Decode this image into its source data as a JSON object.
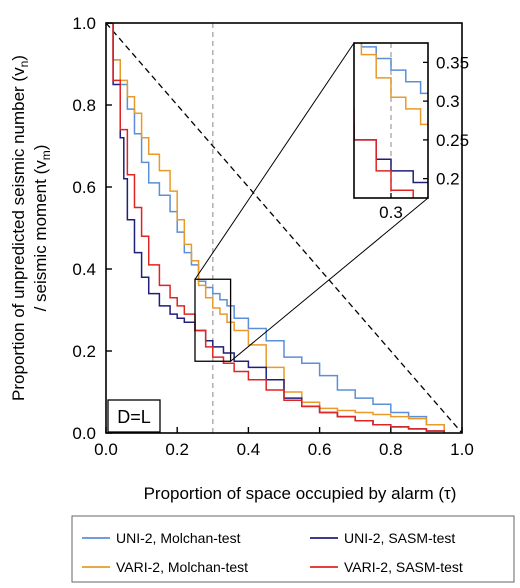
{
  "chart_data": {
    "type": "line",
    "xlabel": "Proportion of space occupied by alarm (τ)",
    "ylabel_line1": "Proportion of unpredicted seismic number (v",
    "ylabel_sub1": "n",
    "ylabel_close1": ")",
    "ylabel_line2": "/ seismic moment (v",
    "ylabel_sub2": "m",
    "ylabel_close2": ")",
    "xlim": [
      0,
      1
    ],
    "ylim": [
      0,
      1
    ],
    "xticks": [
      "0.0",
      "0.2",
      "0.4",
      "0.6",
      "0.8",
      "1.0"
    ],
    "yticks": [
      "0.0",
      "0.2",
      "0.4",
      "0.6",
      "0.8",
      "1.0"
    ],
    "region_label": "D=L",
    "reference_x": 0.3,
    "reference_diagonal": {
      "x": [
        0,
        1
      ],
      "y": [
        1,
        0
      ]
    },
    "inset": {
      "xlim": [
        0.25,
        0.35
      ],
      "ylim": [
        0.175,
        0.375
      ],
      "xtick": "0.3",
      "yticks": [
        "0.35",
        "0.3",
        "0.25",
        "0.2"
      ]
    },
    "series": [
      {
        "name": "UNI-2, Molchan-test",
        "color": "#5b8fd8",
        "x": [
          0,
          0.02,
          0.04,
          0.06,
          0.08,
          0.1,
          0.12,
          0.15,
          0.18,
          0.2,
          0.22,
          0.24,
          0.26,
          0.28,
          0.3,
          0.32,
          0.34,
          0.36,
          0.4,
          0.45,
          0.5,
          0.55,
          0.6,
          0.65,
          0.7,
          0.75,
          0.8,
          0.85,
          0.9,
          0.95
        ],
        "y": [
          1,
          0.91,
          0.85,
          0.79,
          0.73,
          0.66,
          0.61,
          0.58,
          0.54,
          0.49,
          0.44,
          0.41,
          0.37,
          0.355,
          0.34,
          0.325,
          0.31,
          0.28,
          0.255,
          0.225,
          0.185,
          0.17,
          0.14,
          0.105,
          0.085,
          0.07,
          0.05,
          0.04,
          0.02,
          0
        ]
      },
      {
        "name": "VARI-2, Molchan-test",
        "color": "#e89a2c",
        "x": [
          0,
          0.02,
          0.04,
          0.06,
          0.08,
          0.1,
          0.12,
          0.15,
          0.18,
          0.2,
          0.22,
          0.24,
          0.26,
          0.28,
          0.3,
          0.32,
          0.34,
          0.36,
          0.4,
          0.45,
          0.5,
          0.55,
          0.6,
          0.65,
          0.7,
          0.75,
          0.8,
          0.85,
          0.9,
          0.95
        ],
        "y": [
          1,
          0.91,
          0.86,
          0.82,
          0.78,
          0.72,
          0.68,
          0.64,
          0.59,
          0.52,
          0.46,
          0.42,
          0.36,
          0.33,
          0.305,
          0.29,
          0.27,
          0.25,
          0.215,
          0.16,
          0.1,
          0.075,
          0.06,
          0.055,
          0.05,
          0.045,
          0.04,
          0.035,
          0.02,
          0
        ]
      },
      {
        "name": "UNI-2, SASM-test",
        "color": "#1f1f7a",
        "x": [
          0,
          0.02,
          0.04,
          0.05,
          0.06,
          0.08,
          0.1,
          0.12,
          0.15,
          0.18,
          0.2,
          0.22,
          0.25,
          0.28,
          0.3,
          0.33,
          0.36,
          0.4,
          0.45,
          0.5,
          0.55,
          0.6,
          0.65,
          0.7,
          0.75,
          0.8,
          0.85,
          0.9,
          0.95
        ],
        "y": [
          1,
          0.85,
          0.72,
          0.62,
          0.52,
          0.44,
          0.38,
          0.34,
          0.31,
          0.29,
          0.28,
          0.27,
          0.25,
          0.225,
          0.21,
          0.195,
          0.175,
          0.16,
          0.13,
          0.085,
          0.065,
          0.05,
          0.04,
          0.03,
          0.02,
          0.015,
          0.01,
          0.005,
          0
        ]
      },
      {
        "name": "VARI-2, SASM-test",
        "color": "#e02424",
        "x": [
          0,
          0.02,
          0.04,
          0.06,
          0.08,
          0.1,
          0.12,
          0.15,
          0.18,
          0.2,
          0.22,
          0.25,
          0.28,
          0.3,
          0.33,
          0.36,
          0.4,
          0.45,
          0.5,
          0.55,
          0.6,
          0.65,
          0.7,
          0.75,
          0.8,
          0.85,
          0.9,
          0.95
        ],
        "y": [
          1,
          0.86,
          0.74,
          0.63,
          0.55,
          0.48,
          0.41,
          0.36,
          0.33,
          0.31,
          0.29,
          0.25,
          0.21,
          0.185,
          0.17,
          0.15,
          0.13,
          0.105,
          0.08,
          0.065,
          0.05,
          0.04,
          0.03,
          0.02,
          0.015,
          0.01,
          0.005,
          0
        ]
      }
    ],
    "legend_position": "bottom"
  }
}
